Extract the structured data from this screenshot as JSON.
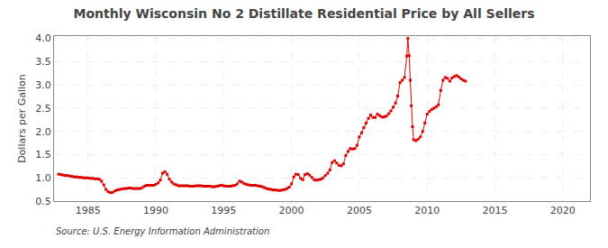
{
  "chart_data": {
    "type": "line",
    "title": "Monthly Wisconsin No 2 Distillate Residential Price by All Sellers",
    "ylabel": "Dollars per Gallon",
    "source": "Source: U.S. Energy Information Administration",
    "color": "#dd0000",
    "marker": "square",
    "line_style": "solid",
    "grid": true,
    "xlim": [
      1982.5,
      2022
    ],
    "ylim": [
      0.5,
      4.05
    ],
    "xticks": [
      1985,
      1990,
      1995,
      2000,
      2005,
      2010,
      2015,
      2020
    ],
    "yticks": [
      0.5,
      {
        "value": 1.0,
        "label": "1.0"
      },
      1.5,
      {
        "value": 2.0,
        "label": "2.0"
      },
      2.5,
      {
        "value": 3.0,
        "label": "3.0"
      },
      3.5,
      {
        "value": 4.0,
        "label": "4.0"
      }
    ],
    "x": [
      1982.83,
      1983.0,
      1983.17,
      1983.33,
      1983.5,
      1983.67,
      1983.83,
      1984.0,
      1984.17,
      1984.33,
      1984.5,
      1984.67,
      1984.83,
      1985.0,
      1985.17,
      1985.33,
      1985.5,
      1985.67,
      1985.83,
      1986.0,
      1986.17,
      1986.33,
      1986.5,
      1986.67,
      1986.83,
      1987.0,
      1987.17,
      1987.33,
      1987.5,
      1987.67,
      1987.83,
      1988.0,
      1988.17,
      1988.33,
      1988.5,
      1988.67,
      1988.83,
      1989.0,
      1989.17,
      1989.33,
      1989.5,
      1989.67,
      1989.83,
      1990.0,
      1990.17,
      1990.33,
      1990.5,
      1990.67,
      1990.83,
      1991.0,
      1991.17,
      1991.33,
      1991.5,
      1991.67,
      1991.83,
      1992.0,
      1992.17,
      1992.33,
      1992.5,
      1992.67,
      1992.83,
      1993.0,
      1993.17,
      1993.33,
      1993.5,
      1993.67,
      1993.83,
      1994.0,
      1994.17,
      1994.33,
      1994.5,
      1994.67,
      1994.83,
      1995.0,
      1995.17,
      1995.33,
      1995.5,
      1995.67,
      1995.83,
      1996.0,
      1996.17,
      1996.33,
      1996.5,
      1996.67,
      1996.83,
      1997.0,
      1997.17,
      1997.33,
      1997.5,
      1997.67,
      1997.83,
      1998.0,
      1998.17,
      1998.33,
      1998.5,
      1998.67,
      1998.83,
      1999.0,
      1999.17,
      1999.33,
      1999.5,
      1999.67,
      1999.83,
      2000.0,
      2000.17,
      2000.33,
      2000.5,
      2000.67,
      2000.83,
      2001.0,
      2001.17,
      2001.33,
      2001.5,
      2001.67,
      2001.83,
      2002.0,
      2002.17,
      2002.33,
      2002.5,
      2002.67,
      2002.83,
      2003.0,
      2003.17,
      2003.33,
      2003.5,
      2003.67,
      2003.83,
      2004.0,
      2004.17,
      2004.33,
      2004.5,
      2004.67,
      2004.83,
      2005.0,
      2005.17,
      2005.33,
      2005.5,
      2005.67,
      2005.83,
      2006.0,
      2006.17,
      2006.33,
      2006.5,
      2006.67,
      2006.83,
      2007.0,
      2007.17,
      2007.33,
      2007.5,
      2007.67,
      2007.83,
      2008.0,
      2008.17,
      2008.33,
      2008.5,
      2008.58,
      2008.67,
      2008.75,
      2008.83,
      2008.92,
      2009.0,
      2009.17,
      2009.33,
      2009.5,
      2009.67,
      2009.83,
      2010.0,
      2010.17,
      2010.33,
      2010.5,
      2010.67,
      2010.83,
      2011.0,
      2011.17,
      2011.33,
      2011.5,
      2011.67,
      2011.83,
      2012.0,
      2012.17,
      2012.33,
      2012.5,
      2012.67,
      2012.83
    ],
    "values": [
      1.08,
      1.07,
      1.06,
      1.05,
      1.05,
      1.04,
      1.03,
      1.02,
      1.02,
      1.01,
      1.01,
      1.0,
      1.0,
      1.0,
      0.99,
      0.99,
      0.98,
      0.98,
      0.97,
      0.93,
      0.85,
      0.75,
      0.7,
      0.68,
      0.69,
      0.72,
      0.74,
      0.75,
      0.76,
      0.77,
      0.77,
      0.78,
      0.78,
      0.77,
      0.77,
      0.77,
      0.77,
      0.79,
      0.82,
      0.84,
      0.84,
      0.84,
      0.84,
      0.86,
      0.89,
      0.95,
      1.1,
      1.13,
      1.08,
      0.97,
      0.91,
      0.87,
      0.85,
      0.83,
      0.83,
      0.83,
      0.83,
      0.83,
      0.82,
      0.82,
      0.82,
      0.83,
      0.83,
      0.83,
      0.82,
      0.82,
      0.82,
      0.82,
      0.81,
      0.81,
      0.82,
      0.83,
      0.84,
      0.83,
      0.82,
      0.82,
      0.82,
      0.83,
      0.84,
      0.87,
      0.93,
      0.91,
      0.88,
      0.86,
      0.85,
      0.84,
      0.84,
      0.84,
      0.83,
      0.82,
      0.81,
      0.79,
      0.77,
      0.76,
      0.75,
      0.74,
      0.74,
      0.73,
      0.73,
      0.74,
      0.75,
      0.77,
      0.8,
      0.87,
      1.02,
      1.08,
      1.07,
      0.99,
      0.96,
      1.07,
      1.09,
      1.06,
      1.01,
      0.96,
      0.95,
      0.96,
      0.97,
      1.0,
      1.05,
      1.1,
      1.17,
      1.33,
      1.37,
      1.32,
      1.27,
      1.26,
      1.3,
      1.48,
      1.57,
      1.63,
      1.62,
      1.63,
      1.7,
      1.88,
      1.97,
      2.08,
      2.18,
      2.28,
      2.35,
      2.3,
      2.3,
      2.37,
      2.34,
      2.31,
      2.31,
      2.33,
      2.38,
      2.44,
      2.52,
      2.61,
      2.76,
      3.05,
      3.1,
      3.16,
      3.62,
      4.0,
      3.63,
      3.1,
      2.55,
      2.1,
      1.82,
      1.8,
      1.83,
      1.88,
      2.0,
      2.18,
      2.37,
      2.43,
      2.47,
      2.5,
      2.53,
      2.57,
      2.88,
      3.1,
      3.16,
      3.14,
      3.08,
      3.15,
      3.18,
      3.2,
      3.17,
      3.13,
      3.1,
      3.08
    ]
  }
}
